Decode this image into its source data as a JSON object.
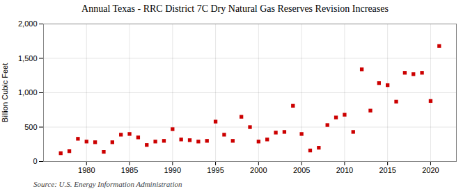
{
  "chart_data": {
    "type": "scatter",
    "title": "Annual Texas - RRC District 7C Dry Natural Gas Reserves Revision Increases",
    "ylabel": "Billion Cubic Feet",
    "source": "Source: U.S. Energy Information Administration",
    "x": [
      1977,
      1978,
      1979,
      1980,
      1981,
      1982,
      1983,
      1984,
      1985,
      1986,
      1987,
      1988,
      1989,
      1990,
      1991,
      1992,
      1993,
      1994,
      1995,
      1996,
      1997,
      1998,
      1999,
      2000,
      2001,
      2002,
      2003,
      2004,
      2005,
      2006,
      2007,
      2008,
      2009,
      2010,
      2011,
      2012,
      2013,
      2014,
      2015,
      2016,
      2017,
      2018,
      2019,
      2020,
      2021
    ],
    "values": [
      120,
      150,
      330,
      290,
      280,
      140,
      280,
      390,
      400,
      350,
      240,
      290,
      300,
      470,
      320,
      310,
      290,
      300,
      580,
      390,
      300,
      650,
      500,
      290,
      320,
      420,
      430,
      810,
      400,
      160,
      200,
      530,
      640,
      680,
      430,
      1340,
      740,
      1140,
      1110,
      870,
      1290,
      1270,
      1290,
      880,
      1680
    ],
    "color": "#cc0000",
    "marker": "square",
    "xlim": [
      1975,
      2023
    ],
    "ylim": [
      0,
      2000
    ],
    "xticks": [
      1980,
      1985,
      1990,
      1995,
      2000,
      2005,
      2010,
      2015,
      2020
    ],
    "yticks": [
      0,
      500,
      {
        "value": 1000,
        "label": "1,000"
      },
      {
        "value": 1500,
        "label": "1,500"
      },
      {
        "value": 2000,
        "label": "2,000"
      }
    ],
    "grid": true
  }
}
